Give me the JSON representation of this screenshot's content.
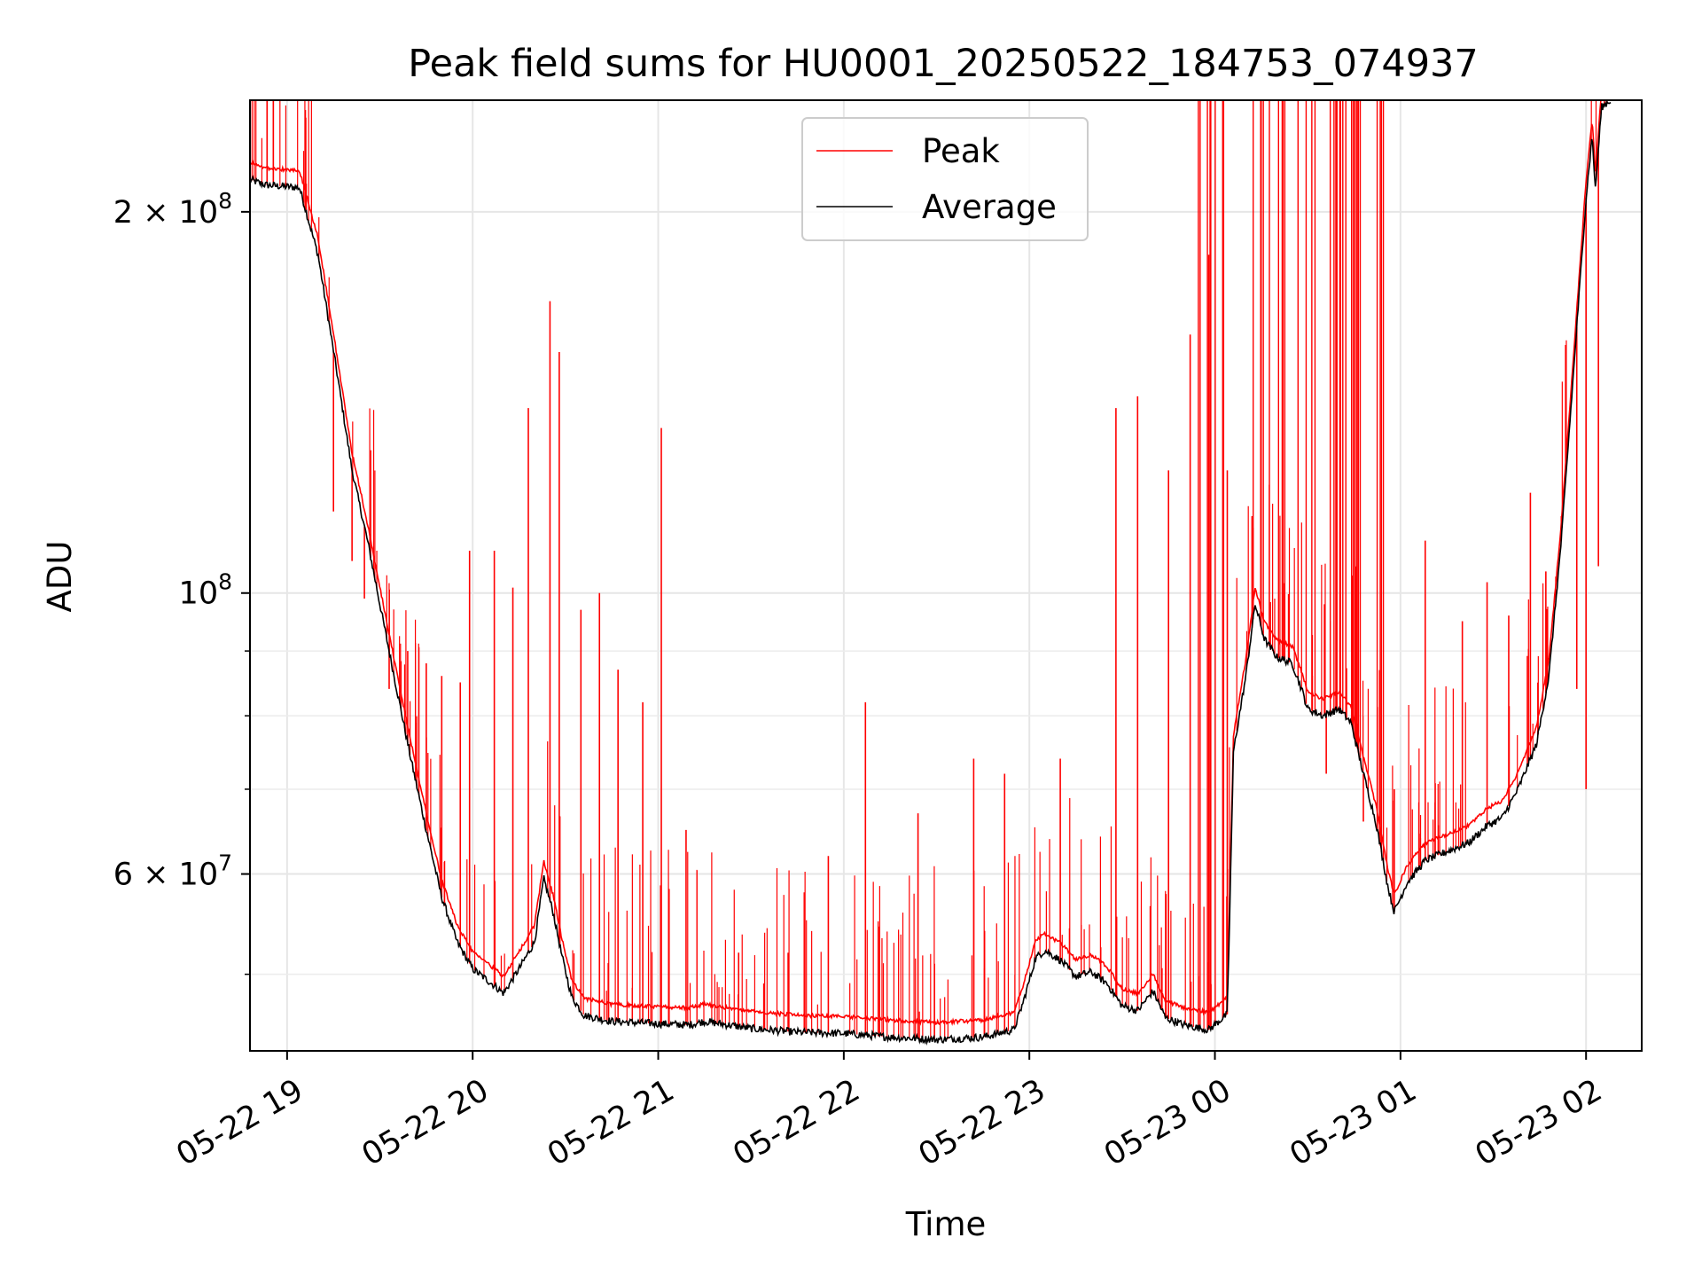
{
  "chart_data": {
    "type": "line",
    "title": "Peak field sums for HU0001_20250522_184753_074937",
    "xlabel": "Time",
    "ylabel": "ADU",
    "y_scale": "log",
    "ylim": [
      43500000,
      245000000
    ],
    "xlim": [
      "2025-05-22 18:48",
      "2025-05-23 02:18"
    ],
    "grid": true,
    "legend": {
      "position": "top-center",
      "entries": [
        "Peak",
        "Average"
      ]
    },
    "x_ticks": [
      {
        "time": "2025-05-22 19:00",
        "label": "05-22 19"
      },
      {
        "time": "2025-05-22 20:00",
        "label": "05-22 20"
      },
      {
        "time": "2025-05-22 21:00",
        "label": "05-22 21"
      },
      {
        "time": "2025-05-22 22:00",
        "label": "05-22 22"
      },
      {
        "time": "2025-05-22 23:00",
        "label": "05-22 23"
      },
      {
        "time": "2025-05-23 00:00",
        "label": "05-23 00"
      },
      {
        "time": "2025-05-23 01:00",
        "label": "05-23 01"
      },
      {
        "time": "2025-05-23 02:00",
        "label": "05-23 02"
      }
    ],
    "y_ticks_major": [
      {
        "value": 200000000,
        "base": "2 × 10",
        "exp": "8"
      },
      {
        "value": 100000000,
        "base": "10",
        "exp": "8"
      },
      {
        "value": 60000000,
        "base": "6 × 10",
        "exp": "7"
      }
    ],
    "y_ticks_minor": [
      50000000,
      70000000,
      80000000,
      90000000
    ],
    "series": [
      {
        "name": "Average",
        "color": "#000000",
        "points": [
          [
            "2025-05-22 18:48",
            212000000
          ],
          [
            "2025-05-22 18:53",
            210000000
          ],
          [
            "2025-05-22 19:04",
            209000000
          ],
          [
            "2025-05-22 19:10",
            185000000
          ],
          [
            "2025-05-22 19:16",
            150000000
          ],
          [
            "2025-05-22 19:21",
            125000000
          ],
          [
            "2025-05-22 19:26",
            110000000
          ],
          [
            "2025-05-22 19:30",
            98000000
          ],
          [
            "2025-05-22 19:35",
            85000000
          ],
          [
            "2025-05-22 19:40",
            74000000
          ],
          [
            "2025-05-22 19:45",
            65000000
          ],
          [
            "2025-05-22 19:50",
            57500000
          ],
          [
            "2025-05-22 19:55",
            53000000
          ],
          [
            "2025-05-22 20:00",
            50500000
          ],
          [
            "2025-05-22 20:06",
            49200000
          ],
          [
            "2025-05-22 20:10",
            48300000
          ],
          [
            "2025-05-22 20:15",
            50500000
          ],
          [
            "2025-05-22 20:20",
            53000000
          ],
          [
            "2025-05-22 20:23",
            59500000
          ],
          [
            "2025-05-22 20:26",
            56000000
          ],
          [
            "2025-05-22 20:29",
            51500000
          ],
          [
            "2025-05-22 20:32",
            48000000
          ],
          [
            "2025-05-22 20:36",
            46400000
          ],
          [
            "2025-05-22 20:45",
            45900000
          ],
          [
            "2025-05-22 21:00",
            45700000
          ],
          [
            "2025-05-22 21:10",
            45600000
          ],
          [
            "2025-05-22 21:15",
            45900000
          ],
          [
            "2025-05-22 21:30",
            45300000
          ],
          [
            "2025-05-22 21:45",
            45000000
          ],
          [
            "2025-05-22 22:00",
            44900000
          ],
          [
            "2025-05-22 22:15",
            44600000
          ],
          [
            "2025-05-22 22:30",
            44400000
          ],
          [
            "2025-05-22 22:45",
            44600000
          ],
          [
            "2025-05-22 22:55",
            45200000
          ],
          [
            "2025-05-22 22:58",
            47500000
          ],
          [
            "2025-05-22 23:02",
            51500000
          ],
          [
            "2025-05-22 23:05",
            52200000
          ],
          [
            "2025-05-22 23:10",
            51300000
          ],
          [
            "2025-05-22 23:15",
            49800000
          ],
          [
            "2025-05-22 23:20",
            50200000
          ],
          [
            "2025-05-22 23:25",
            49200000
          ],
          [
            "2025-05-22 23:30",
            47200000
          ],
          [
            "2025-05-22 23:35",
            46800000
          ],
          [
            "2025-05-22 23:40",
            48500000
          ],
          [
            "2025-05-22 23:44",
            46200000
          ],
          [
            "2025-05-22 23:50",
            45600000
          ],
          [
            "2025-05-22 23:58",
            45200000
          ],
          [
            "2025-05-23 00:04",
            46500000
          ],
          [
            "2025-05-23 00:06",
            75000000
          ],
          [
            "2025-05-23 00:10",
            86000000
          ],
          [
            "2025-05-23 00:13",
            98000000
          ],
          [
            "2025-05-23 00:16",
            92000000
          ],
          [
            "2025-05-23 00:20",
            89000000
          ],
          [
            "2025-05-23 00:25",
            88000000
          ],
          [
            "2025-05-23 00:28",
            84000000
          ],
          [
            "2025-05-23 00:30",
            81000000
          ],
          [
            "2025-05-23 00:35",
            80000000
          ],
          [
            "2025-05-23 00:40",
            81000000
          ],
          [
            "2025-05-23 00:44",
            79000000
          ],
          [
            "2025-05-23 00:48",
            72000000
          ],
          [
            "2025-05-23 00:52",
            66000000
          ],
          [
            "2025-05-23 00:56",
            58500000
          ],
          [
            "2025-05-23 00:58",
            56000000
          ],
          [
            "2025-05-23 01:02",
            59000000
          ],
          [
            "2025-05-23 01:08",
            61500000
          ],
          [
            "2025-05-23 01:15",
            62500000
          ],
          [
            "2025-05-23 01:22",
            63500000
          ],
          [
            "2025-05-23 01:28",
            65500000
          ],
          [
            "2025-05-23 01:33",
            66500000
          ],
          [
            "2025-05-23 01:38",
            70000000
          ],
          [
            "2025-05-23 01:44",
            76000000
          ],
          [
            "2025-05-23 01:48",
            86000000
          ],
          [
            "2025-05-23 01:52",
            110000000
          ],
          [
            "2025-05-23 01:56",
            150000000
          ],
          [
            "2025-05-23 02:00",
            205000000
          ],
          [
            "2025-05-23 02:02",
            230000000
          ],
          [
            "2025-05-23 02:03",
            208000000
          ],
          [
            "2025-05-23 02:05",
            242000000
          ],
          [
            "2025-05-23 02:08",
            245000000
          ]
        ]
      },
      {
        "name": "Peak",
        "color": "#ff0000",
        "spikes": [
          [
            "2025-05-22 19:15",
            116000000
          ],
          [
            "2025-05-22 19:21",
            106000000
          ],
          [
            "2025-05-22 19:25",
            99000000
          ],
          [
            "2025-05-22 19:33",
            84000000
          ],
          [
            "2025-05-22 19:39",
            90000000
          ],
          [
            "2025-05-22 19:45",
            88000000
          ],
          [
            "2025-05-22 19:50",
            86000000
          ],
          [
            "2025-05-22 19:56",
            85000000
          ],
          [
            "2025-05-22 19:59",
            108000000
          ],
          [
            "2025-05-22 20:07",
            108000000
          ],
          [
            "2025-05-22 20:13",
            101000000
          ],
          [
            "2025-05-22 20:18",
            140000000
          ],
          [
            "2025-05-22 20:25",
            170000000
          ],
          [
            "2025-05-22 20:28",
            155000000
          ],
          [
            "2025-05-22 20:35",
            97000000
          ],
          [
            "2025-05-22 20:41",
            100000000
          ],
          [
            "2025-05-22 20:47",
            87000000
          ],
          [
            "2025-05-22 20:55",
            82000000
          ],
          [
            "2025-05-22 21:01",
            135000000
          ],
          [
            "2025-05-22 21:09",
            65000000
          ],
          [
            "2025-05-22 21:26",
            52000000
          ],
          [
            "2025-05-22 21:42",
            52000000
          ],
          [
            "2025-05-22 21:55",
            62000000
          ],
          [
            "2025-05-22 22:07",
            82000000
          ],
          [
            "2025-05-22 22:24",
            67000000
          ],
          [
            "2025-05-22 22:42",
            74000000
          ],
          [
            "2025-05-22 22:52",
            72000000
          ],
          [
            "2025-05-22 23:10",
            74000000
          ],
          [
            "2025-05-22 23:28",
            140000000
          ],
          [
            "2025-05-22 23:35",
            143000000
          ],
          [
            "2025-05-22 23:45",
            125000000
          ],
          [
            "2025-05-22 23:52",
            160000000
          ],
          [
            "2025-05-22 23:58",
            185000000
          ],
          [
            "2025-05-23 00:04",
            125000000
          ],
          [
            "2025-05-23 00:12",
            115000000
          ],
          [
            "2025-05-23 00:22",
            100000000
          ],
          [
            "2025-05-23 00:36",
            72000000
          ],
          [
            "2025-05-23 00:48",
            66000000
          ],
          [
            "2025-05-23 00:58",
            70000000
          ],
          [
            "2025-05-23 01:08",
            110000000
          ],
          [
            "2025-05-23 01:20",
            95000000
          ],
          [
            "2025-05-23 01:28",
            102000000
          ],
          [
            "2025-05-23 01:35",
            96000000
          ],
          [
            "2025-05-23 01:42",
            120000000
          ],
          [
            "2025-05-23 01:47",
            104000000
          ],
          [
            "2025-05-23 01:52",
            115000000
          ],
          [
            "2025-05-23 01:57",
            84000000
          ],
          [
            "2025-05-23 02:00",
            70000000
          ],
          [
            "2025-05-23 02:04",
            105000000
          ]
        ]
      }
    ]
  }
}
